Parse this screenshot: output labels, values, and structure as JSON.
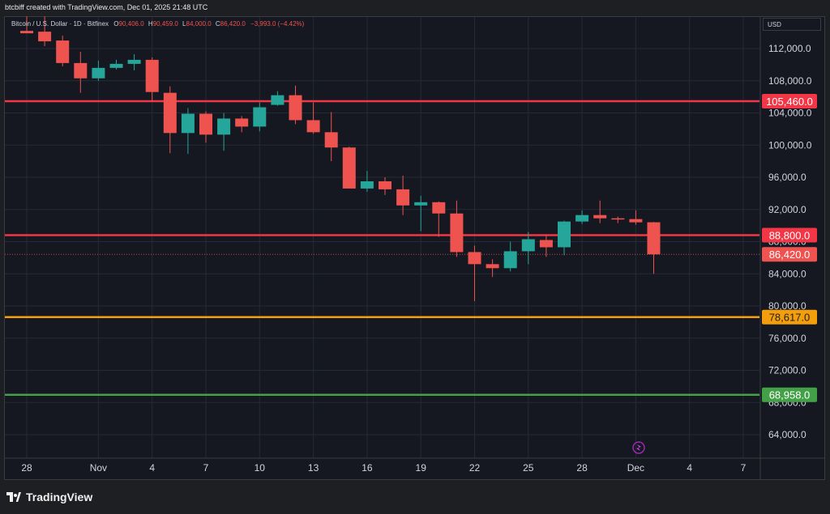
{
  "header": {
    "credit": "btcbiff created with TradingView.com, Dec 01, 2025 21:48 UTC"
  },
  "legend": {
    "symbol": "Bitcoin / U.S. Dollar · 1D · Bitfinex",
    "o_label": "O",
    "o_value": "90,406.0",
    "h_label": "H",
    "h_value": "90,459.0",
    "l_label": "L",
    "l_value": "84,000.0",
    "c_label": "C",
    "c_value": "86,420.0",
    "change": "−3,993.0 (−4.42%)"
  },
  "currency_button": "USD",
  "brand": {
    "logo_text": "TradingView"
  },
  "colors": {
    "background": "#151821",
    "grid": "#262a35",
    "up": "#26a69a",
    "down": "#ef5350",
    "red_line": "#f23645",
    "orange_line": "#f59e0b",
    "green_line": "#43a047",
    "axis_text": "#d1d4dc"
  },
  "chart_data": {
    "type": "candlestick",
    "y_axis": {
      "min": 60000,
      "max": 116000,
      "ticks": [
        112000,
        108000,
        104000,
        100000,
        96000,
        92000,
        88000,
        84000,
        80000,
        76000,
        72000,
        68000,
        64000
      ],
      "tick_labels": [
        "112,000.0",
        "108,000.0",
        "104,000.0",
        "100,000.0",
        "96,000.0",
        "92,000.0",
        "88,000.0",
        "84,000.0",
        "80,000.0",
        "76,000.0",
        "72,000.0",
        "68,000.0",
        "64,000.0"
      ]
    },
    "x_axis": {
      "ticks": [
        {
          "label": "28",
          "day": 0
        },
        {
          "label": "Nov",
          "day": 4
        },
        {
          "label": "4",
          "day": 7
        },
        {
          "label": "7",
          "day": 10
        },
        {
          "label": "10",
          "day": 13
        },
        {
          "label": "13",
          "day": 16
        },
        {
          "label": "16",
          "day": 19
        },
        {
          "label": "19",
          "day": 22
        },
        {
          "label": "22",
          "day": 25
        },
        {
          "label": "25",
          "day": 28
        },
        {
          "label": "28",
          "day": 31
        },
        {
          "label": "Dec",
          "day": 34
        },
        {
          "label": "4",
          "day": 37
        },
        {
          "label": "7",
          "day": 40
        }
      ]
    },
    "candles": [
      {
        "date": "Oct 27",
        "o": 114200,
        "h": 116000,
        "l": 113900,
        "c": 113900
      },
      {
        "date": "Oct 28",
        "o": 114100,
        "h": 116000,
        "l": 112300,
        "c": 112900
      },
      {
        "date": "Oct 29",
        "o": 113000,
        "h": 113600,
        "l": 109800,
        "c": 110200
      },
      {
        "date": "Oct 30",
        "o": 110200,
        "h": 111600,
        "l": 106500,
        "c": 108300
      },
      {
        "date": "Oct 31",
        "o": 108300,
        "h": 110500,
        "l": 108000,
        "c": 109600
      },
      {
        "date": "Nov 1",
        "o": 109600,
        "h": 110600,
        "l": 109400,
        "c": 110100
      },
      {
        "date": "Nov 2",
        "o": 110100,
        "h": 111300,
        "l": 109300,
        "c": 110600
      },
      {
        "date": "Nov 3",
        "o": 110600,
        "h": 110900,
        "l": 105400,
        "c": 106600
      },
      {
        "date": "Nov 4",
        "o": 106500,
        "h": 107300,
        "l": 99000,
        "c": 101500
      },
      {
        "date": "Nov 5",
        "o": 101500,
        "h": 104600,
        "l": 98900,
        "c": 103900
      },
      {
        "date": "Nov 6",
        "o": 103900,
        "h": 104200,
        "l": 100300,
        "c": 101300
      },
      {
        "date": "Nov 7",
        "o": 101300,
        "h": 104000,
        "l": 99300,
        "c": 103300
      },
      {
        "date": "Nov 8",
        "o": 103300,
        "h": 103600,
        "l": 101600,
        "c": 102300
      },
      {
        "date": "Nov 9",
        "o": 102300,
        "h": 105300,
        "l": 101700,
        "c": 104700
      },
      {
        "date": "Nov 10",
        "o": 105000,
        "h": 106700,
        "l": 104900,
        "c": 106200
      },
      {
        "date": "Nov 11",
        "o": 106200,
        "h": 107400,
        "l": 102600,
        "c": 103100
      },
      {
        "date": "Nov 12",
        "o": 103100,
        "h": 105300,
        "l": 101400,
        "c": 101600
      },
      {
        "date": "Nov 13",
        "o": 101600,
        "h": 104100,
        "l": 98000,
        "c": 99700
      },
      {
        "date": "Nov 14",
        "o": 99700,
        "h": 99800,
        "l": 94600,
        "c": 94600
      },
      {
        "date": "Nov 15",
        "o": 94600,
        "h": 96800,
        "l": 94200,
        "c": 95500
      },
      {
        "date": "Nov 16",
        "o": 95500,
        "h": 96000,
        "l": 93800,
        "c": 94500
      },
      {
        "date": "Nov 17",
        "o": 94500,
        "h": 96200,
        "l": 91300,
        "c": 92500
      },
      {
        "date": "Nov 18",
        "o": 92500,
        "h": 93700,
        "l": 89300,
        "c": 92900
      },
      {
        "date": "Nov 19",
        "o": 92900,
        "h": 93000,
        "l": 88600,
        "c": 91500
      },
      {
        "date": "Nov 20",
        "o": 91500,
        "h": 93100,
        "l": 86100,
        "c": 86700
      },
      {
        "date": "Nov 21",
        "o": 86700,
        "h": 87500,
        "l": 80600,
        "c": 85200
      },
      {
        "date": "Nov 22",
        "o": 85200,
        "h": 85800,
        "l": 83600,
        "c": 84700
      },
      {
        "date": "Nov 23",
        "o": 84700,
        "h": 88000,
        "l": 84300,
        "c": 86800
      },
      {
        "date": "Nov 24",
        "o": 86800,
        "h": 89200,
        "l": 85200,
        "c": 88300
      },
      {
        "date": "Nov 25",
        "o": 88200,
        "h": 88800,
        "l": 86100,
        "c": 87300
      },
      {
        "date": "Nov 26",
        "o": 87300,
        "h": 90600,
        "l": 86300,
        "c": 90500
      },
      {
        "date": "Nov 27",
        "o": 90500,
        "h": 91900,
        "l": 90200,
        "c": 91300
      },
      {
        "date": "Nov 28",
        "o": 91300,
        "h": 93100,
        "l": 90300,
        "c": 90900
      },
      {
        "date": "Nov 29",
        "o": 90900,
        "h": 91100,
        "l": 90300,
        "c": 90800
      },
      {
        "date": "Nov 30",
        "o": 90800,
        "h": 91900,
        "l": 90100,
        "c": 90400
      },
      {
        "date": "Dec 1",
        "o": 90406,
        "h": 90459,
        "l": 84000,
        "c": 86420
      }
    ],
    "horizontal_lines": [
      {
        "value": 105460,
        "label": "105,460.0",
        "color": "#f23645"
      },
      {
        "value": 88800,
        "label": "88,800.0",
        "color": "#f23645"
      },
      {
        "value": 78617,
        "label": "78,617.0",
        "color": "#f59e0b"
      },
      {
        "value": 68958,
        "label": "68,958.0",
        "color": "#43a047"
      }
    ],
    "last_price": {
      "value": 86420,
      "label": "86,420.0"
    },
    "grid": true
  }
}
